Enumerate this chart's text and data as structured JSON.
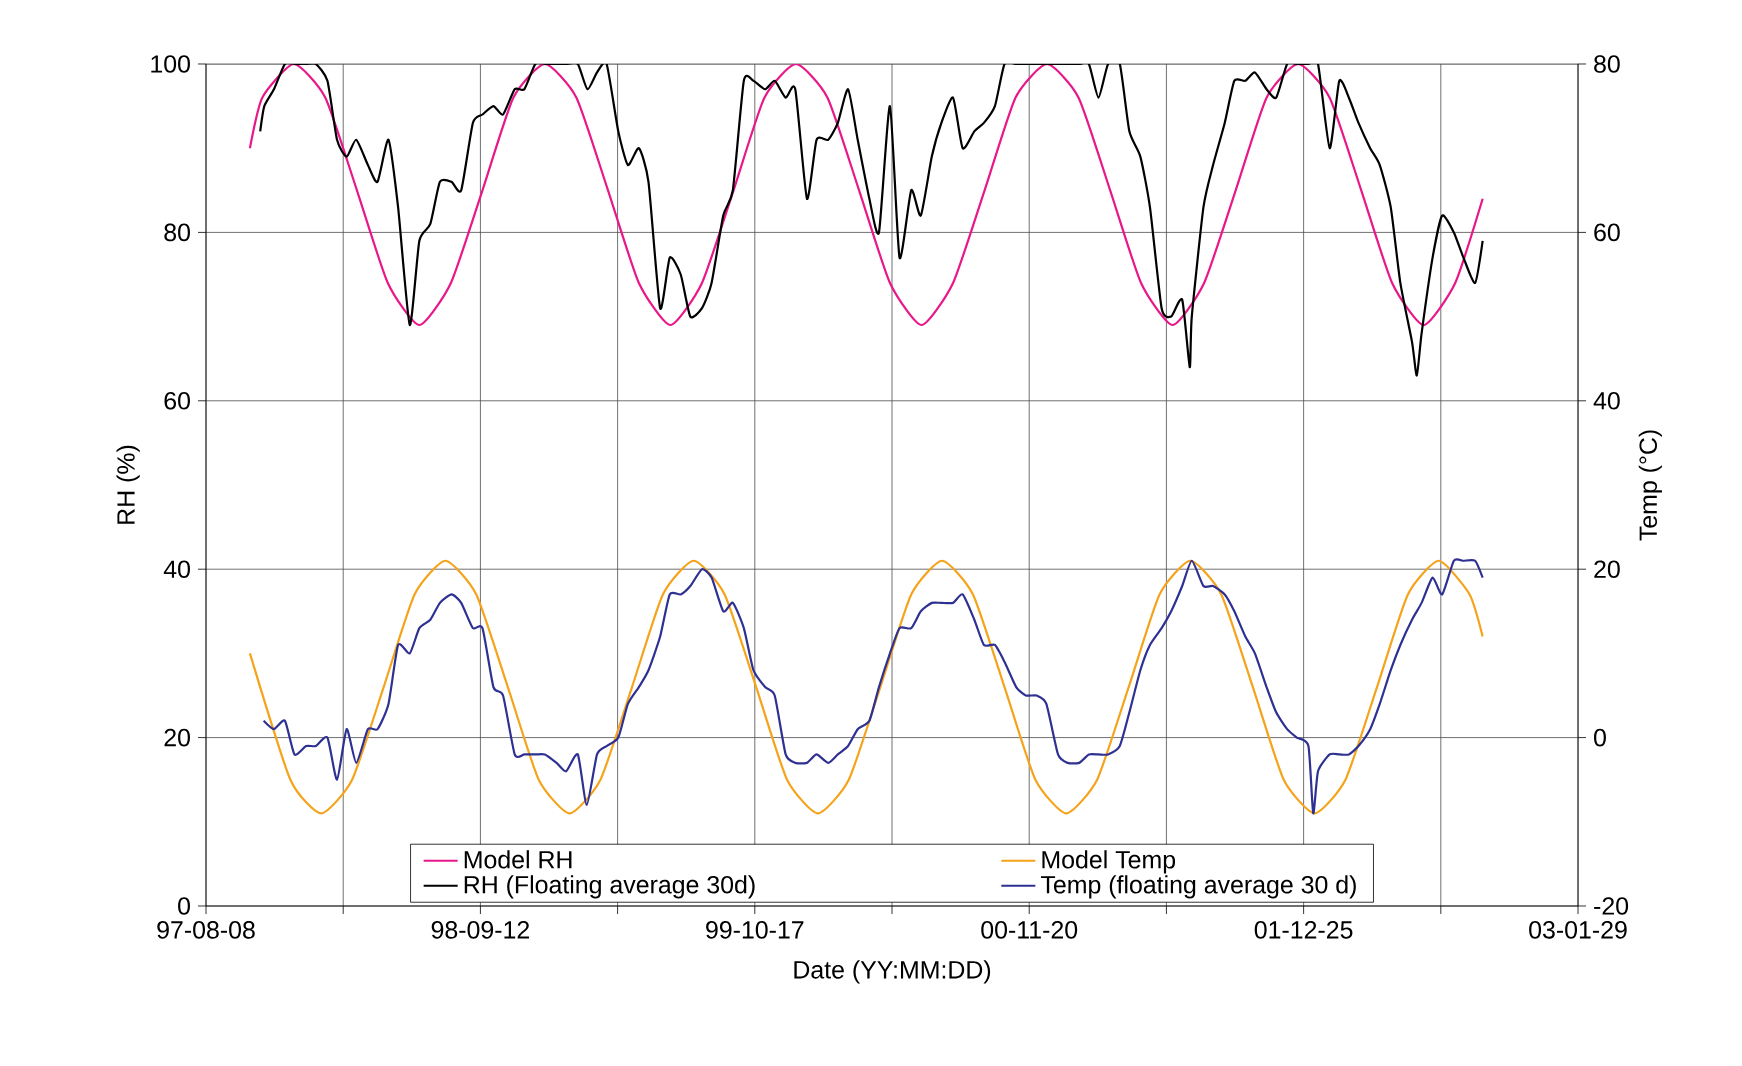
{
  "chart_data": {
    "type": "line",
    "xlabel": "Date (YY:MM:DD)",
    "ylabel": "RH (%)",
    "y2label": "Temp (°C)",
    "xlim": [
      "1997-08-08",
      "2003-01-29"
    ],
    "xticks": [
      {
        "value": "1997-08-08",
        "label": "97-08-08"
      },
      {
        "value": "1998-02-24",
        "label": null
      },
      {
        "value": "1998-09-12",
        "label": "98-09-12"
      },
      {
        "value": "1999-03-31",
        "label": null
      },
      {
        "value": "1999-10-17",
        "label": "99-10-17"
      },
      {
        "value": "2000-05-04",
        "label": null
      },
      {
        "value": "2000-11-20",
        "label": "00-11-20"
      },
      {
        "value": "2001-06-08",
        "label": null
      },
      {
        "value": "2001-12-25",
        "label": "01-12-25"
      },
      {
        "value": "2002-07-13",
        "label": null
      },
      {
        "value": "2003-01-29",
        "label": "03-01-29"
      }
    ],
    "ylim": [
      0,
      100
    ],
    "yticks": [
      0,
      20,
      40,
      60,
      80,
      100
    ],
    "y2lim": [
      -20,
      80
    ],
    "y2ticks": [
      -20,
      0,
      20,
      40,
      60,
      80
    ],
    "grid": true,
    "legend": "bottom",
    "series": [
      {
        "name": "Model RH",
        "color": "#e8178a",
        "x": [
          "1997-10-11",
          "1997-10-29",
          "1997-12-14",
          "1998-01-29",
          "1998-03-16",
          "1998-04-30",
          "1998-06-15",
          "1998-07-31",
          "1998-09-15",
          "1998-10-30",
          "1998-12-15",
          "1999-01-30",
          "1999-03-17",
          "1999-05-01",
          "1999-06-16",
          "1999-08-01",
          "1999-09-16",
          "1999-10-31",
          "1999-12-16",
          "2000-01-31",
          "2000-03-17",
          "2000-05-01",
          "2000-06-16",
          "2000-08-01",
          "2000-09-16",
          "2000-10-31",
          "2000-12-16",
          "2001-01-31",
          "2001-03-18",
          "2001-05-02",
          "2001-06-17",
          "2001-08-02",
          "2001-09-17",
          "2001-11-01",
          "2001-12-17",
          "2002-02-01",
          "2002-03-19",
          "2002-05-03",
          "2002-06-18",
          "2002-08-03",
          "2002-09-12"
        ],
        "values": [
          90,
          96,
          100,
          96,
          85,
          74,
          69,
          74,
          85,
          96,
          100,
          96,
          85,
          74,
          69,
          74,
          85,
          96,
          100,
          96,
          85,
          74,
          69,
          74,
          85,
          96,
          100,
          96,
          85,
          74,
          69,
          74,
          85,
          96,
          100,
          96,
          85,
          74,
          69,
          74,
          84
        ]
      },
      {
        "name": "Model Temp",
        "color": "#f5a31a",
        "axis": "y2",
        "x": [
          "1997-10-11",
          "1997-12-09",
          "1998-01-23",
          "1998-03-09",
          "1998-04-24",
          "1998-06-08",
          "1998-07-23",
          "1998-09-06",
          "1998-10-22",
          "1998-12-06",
          "1999-01-20",
          "1999-03-06",
          "1999-04-21",
          "1999-06-05",
          "1999-07-20",
          "1999-09-03",
          "1999-10-19",
          "1999-12-03",
          "2000-01-17",
          "2000-03-02",
          "2000-04-17",
          "2000-06-01",
          "2000-07-16",
          "2000-08-30",
          "2000-10-15",
          "2000-11-29",
          "2001-01-13",
          "2001-02-27",
          "2001-04-14",
          "2001-05-29",
          "2001-07-13",
          "2001-08-27",
          "2001-10-12",
          "2001-11-26",
          "2002-01-10",
          "2002-02-24",
          "2002-04-11",
          "2002-05-26",
          "2002-07-10",
          "2002-08-24",
          "2002-09-12"
        ],
        "values": [
          10,
          -5,
          -9,
          -5,
          6,
          17,
          21,
          17,
          6,
          -5,
          -9,
          -5,
          6,
          17,
          21,
          17,
          6,
          -5,
          -9,
          -5,
          6,
          17,
          21,
          17,
          6,
          -5,
          -9,
          -5,
          6,
          17,
          21,
          17,
          6,
          -5,
          -9,
          -5,
          6,
          17,
          21,
          17,
          12
        ]
      },
      {
        "name": "RH (Floating average 30d)",
        "color": "#000000",
        "x": [
          "1997-10-26",
          "1997-11-01",
          "1997-11-15",
          "1997-12-01",
          "1997-12-15",
          "1998-01-01",
          "1998-01-15",
          "1998-02-01",
          "1998-02-15",
          "1998-03-01",
          "1998-03-15",
          "1998-04-01",
          "1998-04-15",
          "1998-05-01",
          "1998-05-15",
          "1998-06-01",
          "1998-06-15",
          "1998-07-01",
          "1998-07-15",
          "1998-08-01",
          "1998-08-15",
          "1998-09-01",
          "1998-09-15",
          "1998-10-01",
          "1998-10-15",
          "1998-11-01",
          "1998-11-15",
          "1998-12-01",
          "1998-12-15",
          "1999-01-01",
          "1999-01-15",
          "1999-02-01",
          "1999-02-15",
          "1999-03-01",
          "1999-03-15",
          "1999-04-01",
          "1999-04-15",
          "1999-05-01",
          "1999-05-15",
          "1999-06-01",
          "1999-06-15",
          "1999-07-01",
          "1999-07-15",
          "1999-08-01",
          "1999-08-15",
          "1999-09-01",
          "1999-09-15",
          "1999-10-01",
          "1999-10-15",
          "1999-11-01",
          "1999-11-15",
          "1999-12-01",
          "1999-12-15",
          "2000-01-01",
          "2000-01-15",
          "2000-02-01",
          "2000-02-15",
          "2000-03-01",
          "2000-03-15",
          "2000-04-01",
          "2000-04-15",
          "2000-05-01",
          "2000-05-15",
          "2000-06-01",
          "2000-06-15",
          "2000-07-01",
          "2000-07-15",
          "2000-08-01",
          "2000-08-15",
          "2000-09-01",
          "2000-09-15",
          "2000-10-01",
          "2000-10-15",
          "2000-11-01",
          "2000-11-15",
          "2000-12-01",
          "2000-12-15",
          "2001-01-01",
          "2001-01-15",
          "2001-02-01",
          "2001-02-15",
          "2001-03-01",
          "2001-03-15",
          "2001-04-01",
          "2001-04-15",
          "2001-05-01",
          "2001-05-15",
          "2001-06-01",
          "2001-06-15",
          "2001-07-01",
          "2001-07-12",
          "2001-07-15",
          "2001-08-01",
          "2001-08-15",
          "2001-09-01",
          "2001-09-15",
          "2001-10-01",
          "2001-10-15",
          "2001-11-01",
          "2001-11-15",
          "2001-12-01",
          "2001-12-15",
          "2002-01-01",
          "2002-01-15",
          "2002-02-01",
          "2002-02-15",
          "2002-03-01",
          "2002-03-15",
          "2002-04-01",
          "2002-04-15",
          "2002-05-01",
          "2002-05-15",
          "2002-06-01",
          "2002-06-08",
          "2002-06-15",
          "2002-07-01",
          "2002-07-15",
          "2002-08-01",
          "2002-08-15",
          "2002-09-01",
          "2002-09-12"
        ],
        "values": [
          92,
          95,
          97,
          100,
          100,
          100,
          100,
          98,
          91,
          89,
          91,
          88,
          86,
          91,
          83,
          69,
          79,
          81,
          86,
          86,
          85,
          93,
          94,
          95,
          94,
          97,
          97,
          100,
          100,
          100,
          100,
          100,
          97,
          99,
          100,
          92,
          88,
          90,
          86,
          71,
          77,
          75,
          70,
          71,
          74,
          82,
          85,
          98,
          98,
          97,
          98,
          96,
          97,
          84,
          91,
          91,
          93,
          97,
          91,
          84,
          80,
          95,
          77,
          85,
          82,
          89,
          93,
          96,
          90,
          92,
          93,
          95,
          100,
          100,
          100,
          100,
          100,
          100,
          100,
          100,
          100,
          96,
          100,
          100,
          92,
          89,
          83,
          71,
          70,
          72,
          64,
          70,
          83,
          88,
          93,
          98,
          98,
          99,
          97,
          96,
          100,
          100,
          100,
          100,
          90,
          98,
          96,
          93,
          90,
          88,
          83,
          74,
          67,
          63,
          68,
          77,
          82,
          80,
          77,
          74,
          79
        ]
      },
      {
        "name": "Temp (floating average 30 d)",
        "color": "#2e3192",
        "axis": "y2",
        "x": [
          "1997-10-31",
          "1997-11-15",
          "1997-12-01",
          "1997-12-15",
          "1998-01-01",
          "1998-01-15",
          "1998-02-01",
          "1998-02-15",
          "1998-03-01",
          "1998-03-15",
          "1998-04-01",
          "1998-04-15",
          "1998-05-01",
          "1998-05-15",
          "1998-06-01",
          "1998-06-15",
          "1998-07-01",
          "1998-07-15",
          "1998-08-01",
          "1998-08-15",
          "1998-09-01",
          "1998-09-15",
          "1998-10-01",
          "1998-10-15",
          "1998-11-01",
          "1998-11-15",
          "1998-12-01",
          "1998-12-15",
          "1999-01-01",
          "1999-01-15",
          "1999-02-01",
          "1999-02-14",
          "1999-03-01",
          "1999-03-15",
          "1999-04-01",
          "1999-04-15",
          "1999-05-01",
          "1999-05-15",
          "1999-06-01",
          "1999-06-15",
          "1999-07-01",
          "1999-07-15",
          "1999-08-01",
          "1999-08-15",
          "1999-09-01",
          "1999-09-15",
          "1999-10-01",
          "1999-10-15",
          "1999-11-01",
          "1999-11-15",
          "1999-12-01",
          "1999-12-15",
          "2000-01-01",
          "2000-01-15",
          "2000-02-01",
          "2000-02-15",
          "2000-03-01",
          "2000-03-15",
          "2000-04-01",
          "2000-04-15",
          "2000-05-01",
          "2000-05-15",
          "2000-06-01",
          "2000-06-15",
          "2000-07-01",
          "2000-07-15",
          "2000-08-01",
          "2000-08-15",
          "2000-09-01",
          "2000-09-15",
          "2000-10-01",
          "2000-10-15",
          "2000-11-01",
          "2000-11-15",
          "2000-12-01",
          "2000-12-15",
          "2001-01-01",
          "2001-01-15",
          "2001-02-01",
          "2001-02-15",
          "2001-03-01",
          "2001-03-15",
          "2001-04-01",
          "2001-04-15",
          "2001-05-01",
          "2001-05-15",
          "2001-06-01",
          "2001-06-15",
          "2001-07-01",
          "2001-07-15",
          "2001-08-01",
          "2001-08-15",
          "2001-09-01",
          "2001-09-15",
          "2001-10-01",
          "2001-10-15",
          "2001-11-01",
          "2001-11-15",
          "2001-12-01",
          "2001-12-15",
          "2002-01-01",
          "2002-01-08",
          "2002-01-15",
          "2002-02-01",
          "2002-02-15",
          "2002-03-01",
          "2002-03-15",
          "2002-04-01",
          "2002-04-15",
          "2002-05-01",
          "2002-05-15",
          "2002-06-01",
          "2002-06-15",
          "2002-07-01",
          "2002-07-15",
          "2002-08-01",
          "2002-08-15",
          "2002-09-01",
          "2002-09-12"
        ],
        "values": [
          2,
          1,
          2,
          -2,
          -1,
          -1,
          0,
          -5,
          1,
          -3,
          1,
          1,
          4,
          11,
          10,
          13,
          14,
          16,
          17,
          16,
          13,
          13,
          6,
          5,
          -2,
          -2,
          -2,
          -2,
          -3,
          -4,
          -2,
          -8,
          -2,
          -1,
          0,
          4,
          6,
          8,
          12,
          17,
          17,
          18,
          20,
          19,
          15,
          16,
          13,
          8,
          6,
          5,
          -2,
          -3,
          -3,
          -2,
          -3,
          -2,
          -1,
          1,
          2,
          6,
          10,
          13,
          13,
          15,
          16,
          16,
          16,
          17,
          14,
          11,
          11,
          9,
          6,
          5,
          5,
          4,
          -2,
          -3,
          -3,
          -2,
          -2,
          -2,
          -1,
          3,
          8,
          11,
          13,
          15,
          18,
          21,
          18,
          18,
          17,
          15,
          12,
          10,
          6,
          3,
          1,
          0,
          -1,
          -9,
          -4,
          -2,
          -2,
          -2,
          -1,
          1,
          4,
          8,
          11,
          14,
          16,
          19,
          17,
          21,
          21,
          21,
          19
        ]
      }
    ]
  }
}
